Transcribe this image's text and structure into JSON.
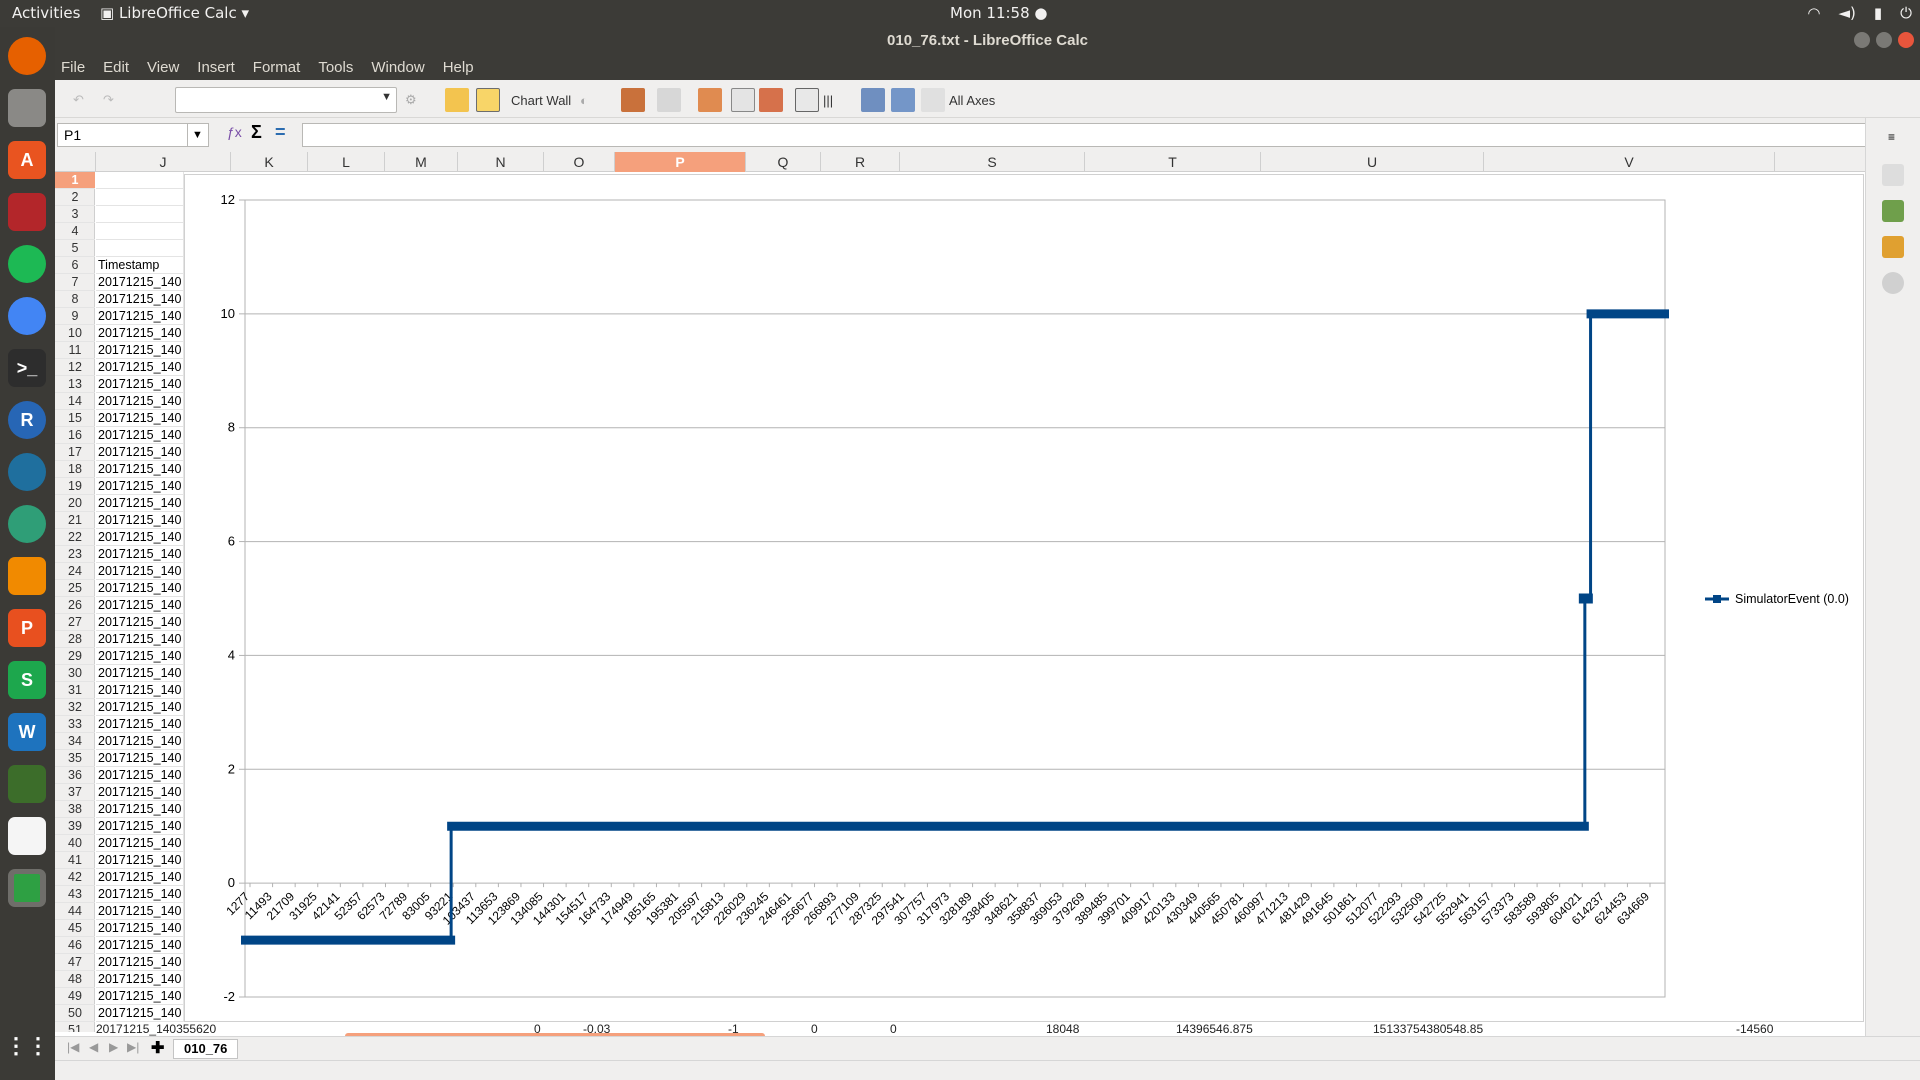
{
  "topbar": {
    "activities": "Activities",
    "app_name": "LibreOffice Calc",
    "clock": "Mon 11:58 ●"
  },
  "window": {
    "title": "010_76.txt - LibreOffice Calc"
  },
  "menu": [
    "File",
    "Edit",
    "View",
    "Insert",
    "Format",
    "Tools",
    "Window",
    "Help"
  ],
  "toolbar": {
    "chart_wall_label": "Chart Wall",
    "all_axes_label": "All Axes",
    "select_value": ""
  },
  "formula": {
    "cell_ref": "P1",
    "sum_symbol": "Σ",
    "equals_symbol": "=",
    "content": ""
  },
  "columns": [
    "J",
    "K",
    "L",
    "M",
    "N",
    "O",
    "P",
    "Q",
    "R",
    "S",
    "T",
    "U",
    "V"
  ],
  "selected_column": "P",
  "rows": {
    "start": 1,
    "end": 51,
    "selected": 1,
    "header_row": 6,
    "header_text": "Timestamp",
    "cell_text": "20171215_140",
    "row51_text": "20171215_140355620"
  },
  "row51_values": [
    "0",
    "-0.03",
    "-1",
    "0",
    "0",
    "18048",
    "14396546.875",
    "15133754380548.85",
    "-14560"
  ],
  "sheet": {
    "tab": "010_76"
  },
  "colors": {
    "series": "#004586",
    "selection": "#f5a07c",
    "grid": "#b3b3b3"
  },
  "chart_data": {
    "type": "line",
    "step": true,
    "y_ticks": [
      "12",
      "10",
      "8",
      "6",
      "4",
      "2",
      "0",
      "-2"
    ],
    "ylim": [
      -2,
      12
    ],
    "x_tick_labels": [
      "1277",
      "11493",
      "21709",
      "31925",
      "42141",
      "52357",
      "62573",
      "72789",
      "83005",
      "93221",
      "103437",
      "113653",
      "123869",
      "134085",
      "144301",
      "154517",
      "164733",
      "174949",
      "185165",
      "195381",
      "205597",
      "215813",
      "226029",
      "236245",
      "246461",
      "256677",
      "266893",
      "277109",
      "287325",
      "297541",
      "307757",
      "317973",
      "328189",
      "338405",
      "348621",
      "358837",
      "369053",
      "379269",
      "389485",
      "399701",
      "409917",
      "420133",
      "430349",
      "440565",
      "450781",
      "460997",
      "471213",
      "481429",
      "491645",
      "501861",
      "512077",
      "522293",
      "532509",
      "542725",
      "552941",
      "563157",
      "573373",
      "583589",
      "593805",
      "604021",
      "614237",
      "624453",
      "634669"
    ],
    "series": [
      {
        "name": "SimulatorEvent (0.0)",
        "points": [
          {
            "x": 1277,
            "y": -1
          },
          {
            "x": 93221,
            "y": -1
          },
          {
            "x": 93221,
            "y": 1
          },
          {
            "x": 598913,
            "y": 1
          },
          {
            "x": 598913,
            "y": 5
          },
          {
            "x": 601467,
            "y": 5
          },
          {
            "x": 601467,
            "y": 10
          },
          {
            "x": 634669,
            "y": 10
          }
        ]
      }
    ],
    "legend_position": "right",
    "grid": true
  }
}
